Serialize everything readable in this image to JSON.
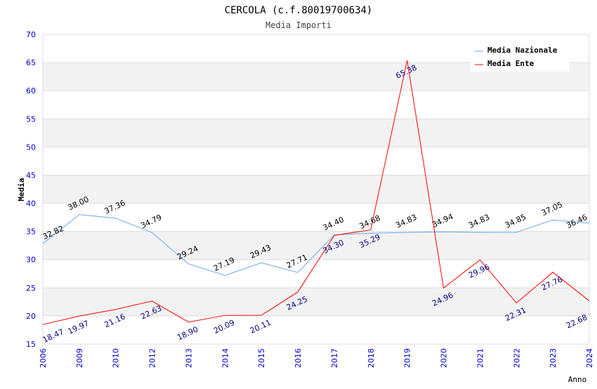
{
  "chart_data": {
    "type": "line",
    "title": "CERCOLA (c.f.80019700634)",
    "subtitle": "Media Importi",
    "xlabel": "Anno",
    "ylabel": "Media",
    "ylim": [
      15,
      70
    ],
    "yticks": [
      15,
      20,
      25,
      30,
      35,
      40,
      45,
      50,
      55,
      60,
      65,
      70
    ],
    "categories": [
      "2006",
      "2009",
      "2010",
      "2012",
      "2013",
      "2014",
      "2015",
      "2016",
      "2017",
      "2018",
      "2019",
      "2020",
      "2021",
      "2022",
      "2023",
      "2024"
    ],
    "legend_position": "top-right",
    "series": [
      {
        "name": "Media Nazionale",
        "color": "#66aaee",
        "label_color": "#000000",
        "values": [
          32.82,
          38.0,
          37.36,
          34.79,
          29.24,
          27.19,
          29.43,
          27.71,
          34.4,
          34.68,
          34.83,
          34.94,
          34.83,
          34.85,
          37.05,
          36.46
        ]
      },
      {
        "name": "Media Ente",
        "color": "#ff0000",
        "label_color": "#000080",
        "values": [
          18.47,
          19.97,
          21.16,
          22.63,
          18.9,
          20.09,
          20.11,
          24.25,
          34.3,
          35.29,
          65.38,
          24.96,
          29.96,
          22.31,
          27.76,
          22.68
        ]
      }
    ]
  }
}
